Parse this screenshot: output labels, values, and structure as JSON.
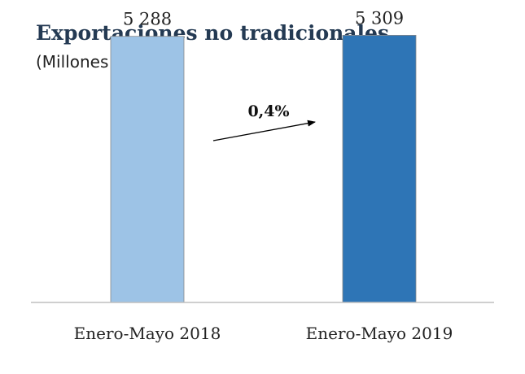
{
  "chart_data": {
    "type": "bar",
    "title": "Exportaciones no tradicionales",
    "subtitle": "(Millones US$)",
    "categories": [
      "Enero-Mayo 2018",
      "Enero-Mayo 2019"
    ],
    "values": [
      5288,
      5309
    ],
    "value_labels": [
      "5 288",
      "5 309"
    ],
    "bar_colors": [
      "#9dc3e6",
      "#2e75b6"
    ],
    "change_annotation": "0,4%",
    "xlabel": "",
    "ylabel": "",
    "ylim": [
      0,
      5800
    ],
    "grid": false,
    "legend": "none"
  }
}
